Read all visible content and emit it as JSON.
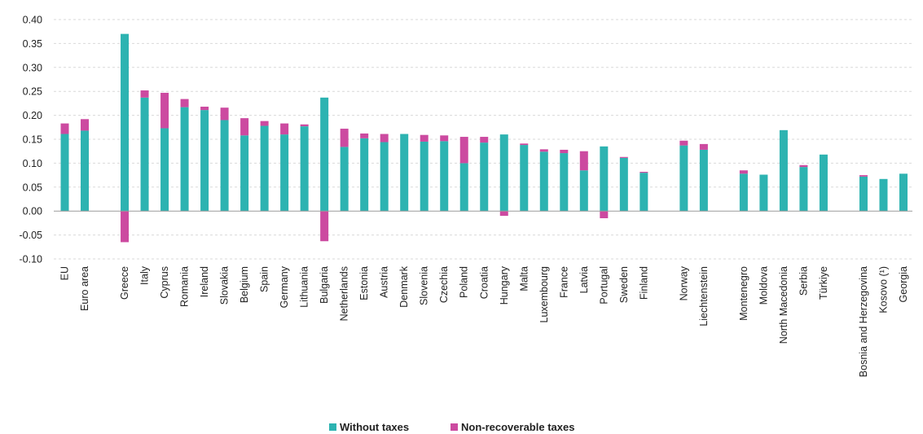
{
  "chart_data": {
    "type": "bar",
    "stacked": true,
    "ylim": [
      -0.1,
      0.4
    ],
    "yticks": [
      -0.1,
      -0.05,
      0.0,
      0.05,
      0.1,
      0.15,
      0.2,
      0.25,
      0.3,
      0.35,
      0.4
    ],
    "ytick_labels": [
      "-0.10",
      "-0.05",
      "0.00",
      "0.05",
      "0.10",
      "0.15",
      "0.20",
      "0.25",
      "0.30",
      "0.35",
      "0.40"
    ],
    "grid": true,
    "legend_position": "bottom",
    "categories": [
      "EU",
      "Euro area",
      "",
      "Greece",
      "Italy",
      "Cyprus",
      "Romania",
      "Ireland",
      "Slovakia",
      "Belgium",
      "Spain",
      "Germany",
      "Lithuania",
      "Bulgaria",
      "Netherlands",
      "Estonia",
      "Austria",
      "Denmark",
      "Slovenia",
      "Czechia",
      "Poland",
      "Croatia",
      "Hungary",
      "Malta",
      "Luxembourg",
      "France",
      "Latvia",
      "Portugal",
      "Sweden",
      "Finland",
      "",
      "Norway",
      "Liechtenstein",
      "",
      "Montenegro",
      "Moldova",
      "North Macedonia",
      "Serbia",
      "Türkiye",
      "",
      "Bosnia and Herzegovina",
      "Kosovo (¹)",
      "Georgia"
    ],
    "series": [
      {
        "name": "Without taxes",
        "color": "#2db3b1",
        "values": [
          0.161,
          0.168,
          null,
          0.37,
          0.237,
          0.173,
          0.217,
          0.211,
          0.19,
          0.158,
          0.178,
          0.16,
          0.177,
          0.237,
          0.134,
          0.152,
          0.144,
          0.161,
          0.145,
          0.146,
          0.1,
          0.143,
          0.16,
          0.138,
          0.124,
          0.121,
          0.085,
          0.135,
          0.111,
          0.08,
          null,
          0.137,
          0.128,
          null,
          0.078,
          0.076,
          0.169,
          0.092,
          0.118,
          null,
          0.072,
          0.067,
          0.078
        ]
      },
      {
        "name": "Non-recoverable taxes",
        "color": "#cc4aa0",
        "values": [
          0.022,
          0.024,
          null,
          -0.065,
          0.015,
          0.074,
          0.017,
          0.007,
          0.026,
          0.036,
          0.01,
          0.023,
          0.004,
          -0.063,
          0.038,
          0.01,
          0.017,
          0.0,
          0.014,
          0.012,
          0.055,
          0.012,
          -0.01,
          0.003,
          0.005,
          0.007,
          0.04,
          -0.015,
          0.002,
          0.002,
          null,
          0.01,
          0.012,
          null,
          0.007,
          0.0,
          0.0,
          0.004,
          0.0,
          null,
          0.003,
          0.0,
          0.0
        ]
      }
    ]
  }
}
